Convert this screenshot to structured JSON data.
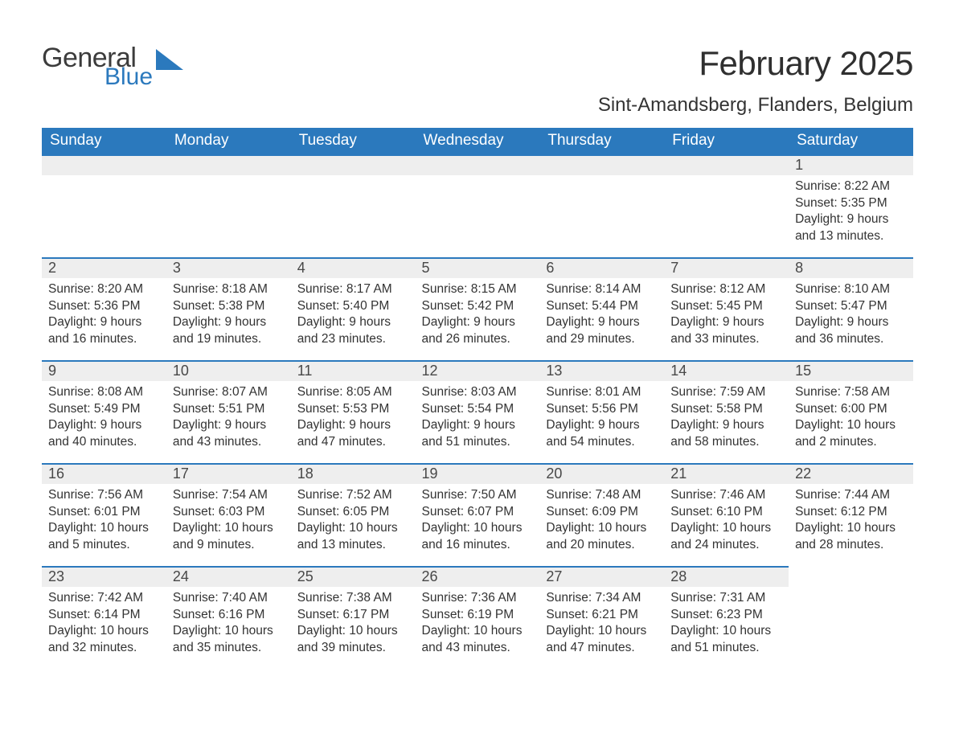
{
  "logo": {
    "word_a": "General",
    "word_b": "Blue",
    "color_a": "#3c3c3c",
    "color_b": "#2b79bd"
  },
  "title": "February 2025",
  "subtitle": "Sint-Amandsberg, Flanders, Belgium",
  "theme": {
    "header_bg": "#2b79bd",
    "header_fg": "#ffffff",
    "daynum_bg": "#eeeeee",
    "row_border": "#2b79bd",
    "text_color": "#333333",
    "title_fontsize": 42,
    "subtitle_fontsize": 24,
    "weekday_fontsize": 19,
    "daynum_fontsize": 18,
    "body_fontsize": 15.5
  },
  "weekdays": [
    "Sunday",
    "Monday",
    "Tuesday",
    "Wednesday",
    "Thursday",
    "Friday",
    "Saturday"
  ],
  "weeks": [
    [
      {
        "empty": true
      },
      {
        "empty": true
      },
      {
        "empty": true
      },
      {
        "empty": true
      },
      {
        "empty": true
      },
      {
        "empty": true
      },
      {
        "n": "1",
        "sunrise": "Sunrise: 8:22 AM",
        "sunset": "Sunset: 5:35 PM",
        "dl1": "Daylight: 9 hours",
        "dl2": "and 13 minutes."
      }
    ],
    [
      {
        "n": "2",
        "sunrise": "Sunrise: 8:20 AM",
        "sunset": "Sunset: 5:36 PM",
        "dl1": "Daylight: 9 hours",
        "dl2": "and 16 minutes."
      },
      {
        "n": "3",
        "sunrise": "Sunrise: 8:18 AM",
        "sunset": "Sunset: 5:38 PM",
        "dl1": "Daylight: 9 hours",
        "dl2": "and 19 minutes."
      },
      {
        "n": "4",
        "sunrise": "Sunrise: 8:17 AM",
        "sunset": "Sunset: 5:40 PM",
        "dl1": "Daylight: 9 hours",
        "dl2": "and 23 minutes."
      },
      {
        "n": "5",
        "sunrise": "Sunrise: 8:15 AM",
        "sunset": "Sunset: 5:42 PM",
        "dl1": "Daylight: 9 hours",
        "dl2": "and 26 minutes."
      },
      {
        "n": "6",
        "sunrise": "Sunrise: 8:14 AM",
        "sunset": "Sunset: 5:44 PM",
        "dl1": "Daylight: 9 hours",
        "dl2": "and 29 minutes."
      },
      {
        "n": "7",
        "sunrise": "Sunrise: 8:12 AM",
        "sunset": "Sunset: 5:45 PM",
        "dl1": "Daylight: 9 hours",
        "dl2": "and 33 minutes."
      },
      {
        "n": "8",
        "sunrise": "Sunrise: 8:10 AM",
        "sunset": "Sunset: 5:47 PM",
        "dl1": "Daylight: 9 hours",
        "dl2": "and 36 minutes."
      }
    ],
    [
      {
        "n": "9",
        "sunrise": "Sunrise: 8:08 AM",
        "sunset": "Sunset: 5:49 PM",
        "dl1": "Daylight: 9 hours",
        "dl2": "and 40 minutes."
      },
      {
        "n": "10",
        "sunrise": "Sunrise: 8:07 AM",
        "sunset": "Sunset: 5:51 PM",
        "dl1": "Daylight: 9 hours",
        "dl2": "and 43 minutes."
      },
      {
        "n": "11",
        "sunrise": "Sunrise: 8:05 AM",
        "sunset": "Sunset: 5:53 PM",
        "dl1": "Daylight: 9 hours",
        "dl2": "and 47 minutes."
      },
      {
        "n": "12",
        "sunrise": "Sunrise: 8:03 AM",
        "sunset": "Sunset: 5:54 PM",
        "dl1": "Daylight: 9 hours",
        "dl2": "and 51 minutes."
      },
      {
        "n": "13",
        "sunrise": "Sunrise: 8:01 AM",
        "sunset": "Sunset: 5:56 PM",
        "dl1": "Daylight: 9 hours",
        "dl2": "and 54 minutes."
      },
      {
        "n": "14",
        "sunrise": "Sunrise: 7:59 AM",
        "sunset": "Sunset: 5:58 PM",
        "dl1": "Daylight: 9 hours",
        "dl2": "and 58 minutes."
      },
      {
        "n": "15",
        "sunrise": "Sunrise: 7:58 AM",
        "sunset": "Sunset: 6:00 PM",
        "dl1": "Daylight: 10 hours",
        "dl2": "and 2 minutes."
      }
    ],
    [
      {
        "n": "16",
        "sunrise": "Sunrise: 7:56 AM",
        "sunset": "Sunset: 6:01 PM",
        "dl1": "Daylight: 10 hours",
        "dl2": "and 5 minutes."
      },
      {
        "n": "17",
        "sunrise": "Sunrise: 7:54 AM",
        "sunset": "Sunset: 6:03 PM",
        "dl1": "Daylight: 10 hours",
        "dl2": "and 9 minutes."
      },
      {
        "n": "18",
        "sunrise": "Sunrise: 7:52 AM",
        "sunset": "Sunset: 6:05 PM",
        "dl1": "Daylight: 10 hours",
        "dl2": "and 13 minutes."
      },
      {
        "n": "19",
        "sunrise": "Sunrise: 7:50 AM",
        "sunset": "Sunset: 6:07 PM",
        "dl1": "Daylight: 10 hours",
        "dl2": "and 16 minutes."
      },
      {
        "n": "20",
        "sunrise": "Sunrise: 7:48 AM",
        "sunset": "Sunset: 6:09 PM",
        "dl1": "Daylight: 10 hours",
        "dl2": "and 20 minutes."
      },
      {
        "n": "21",
        "sunrise": "Sunrise: 7:46 AM",
        "sunset": "Sunset: 6:10 PM",
        "dl1": "Daylight: 10 hours",
        "dl2": "and 24 minutes."
      },
      {
        "n": "22",
        "sunrise": "Sunrise: 7:44 AM",
        "sunset": "Sunset: 6:12 PM",
        "dl1": "Daylight: 10 hours",
        "dl2": "and 28 minutes."
      }
    ],
    [
      {
        "n": "23",
        "sunrise": "Sunrise: 7:42 AM",
        "sunset": "Sunset: 6:14 PM",
        "dl1": "Daylight: 10 hours",
        "dl2": "and 32 minutes."
      },
      {
        "n": "24",
        "sunrise": "Sunrise: 7:40 AM",
        "sunset": "Sunset: 6:16 PM",
        "dl1": "Daylight: 10 hours",
        "dl2": "and 35 minutes."
      },
      {
        "n": "25",
        "sunrise": "Sunrise: 7:38 AM",
        "sunset": "Sunset: 6:17 PM",
        "dl1": "Daylight: 10 hours",
        "dl2": "and 39 minutes."
      },
      {
        "n": "26",
        "sunrise": "Sunrise: 7:36 AM",
        "sunset": "Sunset: 6:19 PM",
        "dl1": "Daylight: 10 hours",
        "dl2": "and 43 minutes."
      },
      {
        "n": "27",
        "sunrise": "Sunrise: 7:34 AM",
        "sunset": "Sunset: 6:21 PM",
        "dl1": "Daylight: 10 hours",
        "dl2": "and 47 minutes."
      },
      {
        "n": "28",
        "sunrise": "Sunrise: 7:31 AM",
        "sunset": "Sunset: 6:23 PM",
        "dl1": "Daylight: 10 hours",
        "dl2": "and 51 minutes."
      },
      {
        "empty": true,
        "noborder": true
      }
    ]
  ]
}
